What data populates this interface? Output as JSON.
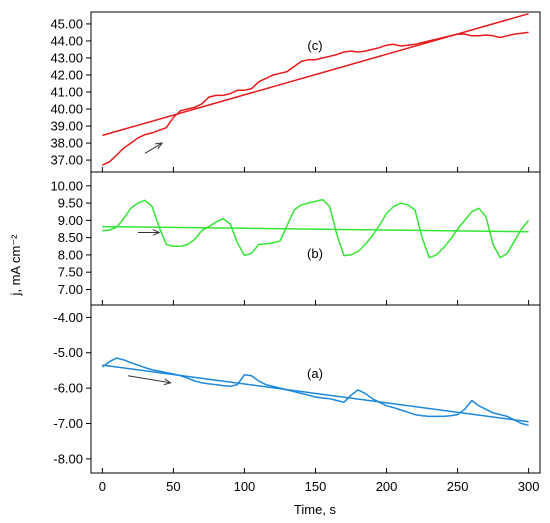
{
  "chart_data": {
    "type": "line",
    "layout": "stacked-panels",
    "shared_x": {
      "label": "Time, s",
      "range": [
        -8,
        308
      ],
      "ticks": [
        0,
        50,
        100,
        150,
        200,
        250,
        300
      ],
      "tick_labels": [
        "0",
        "50",
        "100",
        "150",
        "200",
        "250",
        "300"
      ]
    },
    "ylabel": "j, mA cm⁻²",
    "panels": [
      {
        "label": "(c)",
        "color": "#e8191a",
        "ylim": [
          36.3,
          45.7
        ],
        "yticks": [
          37,
          38,
          39,
          40,
          41,
          42,
          43,
          44,
          45
        ],
        "ytick_labels": [
          "37.00",
          "38.00",
          "39.00",
          "40.00",
          "41.00",
          "42.00",
          "43.00",
          "44.00",
          "45.00"
        ],
        "arrow": {
          "from": [
            30,
            37.4
          ],
          "to": [
            42,
            38.0
          ]
        },
        "trend": {
          "x": [
            0,
            300
          ],
          "y": [
            38.45,
            45.6
          ]
        },
        "series": [
          {
            "x": [
              0,
              5,
              10,
              15,
              20,
              25,
              30,
              35,
              40,
              45,
              50,
              55,
              60,
              65,
              70,
              75,
              80,
              85,
              90,
              95,
              100,
              105,
              110,
              115,
              120,
              125,
              130,
              135,
              140,
              145,
              150,
              155,
              160,
              165,
              170,
              175,
              180,
              185,
              190,
              195,
              200,
              205,
              210,
              215,
              220,
              225,
              230,
              235,
              240,
              245,
              250,
              255,
              260,
              265,
              270,
              275,
              280,
              285,
              290,
              295,
              300
            ],
            "y": [
              36.7,
              36.9,
              37.3,
              37.7,
              38.0,
              38.3,
              38.5,
              38.6,
              38.75,
              38.9,
              39.5,
              39.9,
              40.0,
              40.1,
              40.3,
              40.7,
              40.8,
              40.8,
              40.9,
              41.1,
              41.1,
              41.2,
              41.6,
              41.8,
              42.0,
              42.1,
              42.2,
              42.5,
              42.8,
              42.9,
              42.9,
              43.0,
              43.1,
              43.2,
              43.35,
              43.4,
              43.35,
              43.4,
              43.5,
              43.6,
              43.75,
              43.8,
              43.7,
              43.75,
              43.8,
              43.9,
              44.0,
              44.1,
              44.2,
              44.3,
              44.4,
              44.4,
              44.3,
              44.3,
              44.35,
              44.3,
              44.2,
              44.3,
              44.4,
              44.45,
              44.5
            ]
          }
        ]
      },
      {
        "label": "(b)",
        "color": "#33e633",
        "ylim": [
          6.55,
          10.4
        ],
        "yticks": [
          7,
          7.5,
          8,
          8.5,
          9,
          9.5,
          10
        ],
        "ytick_labels": [
          "7.00",
          "7.50",
          "8.00",
          "8.50",
          "9.00",
          "9.50",
          "10.00"
        ],
        "arrow": {
          "from": [
            25,
            8.65
          ],
          "to": [
            40,
            8.65
          ]
        },
        "trend": {
          "x": [
            0,
            300
          ],
          "y": [
            8.82,
            8.67
          ]
        },
        "series": [
          {
            "x": [
              0,
              5,
              10,
              15,
              20,
              25,
              30,
              35,
              40,
              45,
              50,
              55,
              60,
              65,
              70,
              75,
              80,
              85,
              90,
              95,
              100,
              105,
              110,
              115,
              120,
              125,
              130,
              135,
              140,
              145,
              150,
              155,
              160,
              165,
              170,
              175,
              180,
              185,
              190,
              195,
              200,
              205,
              210,
              215,
              220,
              225,
              230,
              235,
              240,
              245,
              250,
              255,
              260,
              265,
              270,
              275,
              280,
              285,
              290,
              295,
              300
            ],
            "y": [
              8.7,
              8.72,
              8.8,
              9.05,
              9.35,
              9.5,
              9.58,
              9.4,
              8.8,
              8.3,
              8.25,
              8.25,
              8.3,
              8.45,
              8.7,
              8.82,
              8.95,
              9.05,
              8.9,
              8.35,
              7.98,
              8.05,
              8.3,
              8.32,
              8.35,
              8.4,
              8.85,
              9.3,
              9.45,
              9.5,
              9.55,
              9.6,
              9.4,
              8.6,
              7.98,
              8.0,
              8.1,
              8.3,
              8.55,
              8.85,
              9.2,
              9.4,
              9.5,
              9.45,
              9.3,
              8.5,
              7.92,
              8.0,
              8.2,
              8.45,
              8.75,
              9.0,
              9.25,
              9.35,
              9.1,
              8.3,
              7.92,
              8.05,
              8.4,
              8.75,
              9.0
            ]
          }
        ]
      },
      {
        "label": "(a)",
        "color": "#1b88dd",
        "ylim": [
          -8.4,
          -3.65
        ],
        "yticks": [
          -8,
          -7,
          -6,
          -5,
          -4
        ],
        "ytick_labels": [
          "-8.00",
          "-7.00",
          "-6.00",
          "-5.00",
          "-4.00"
        ],
        "arrow": {
          "from": [
            18,
            -5.65
          ],
          "to": [
            48,
            -5.85
          ]
        },
        "trend": {
          "x": [
            0,
            300
          ],
          "y": [
            -5.35,
            -6.95
          ]
        },
        "series": [
          {
            "x": [
              0,
              5,
              10,
              15,
              20,
              25,
              30,
              35,
              40,
              45,
              50,
              55,
              60,
              65,
              70,
              75,
              80,
              85,
              90,
              95,
              100,
              105,
              110,
              115,
              120,
              125,
              130,
              135,
              140,
              145,
              150,
              155,
              160,
              165,
              170,
              175,
              180,
              185,
              190,
              195,
              200,
              205,
              210,
              215,
              220,
              225,
              230,
              235,
              240,
              245,
              250,
              255,
              260,
              265,
              270,
              275,
              280,
              285,
              290,
              295,
              300
            ],
            "y": [
              -5.4,
              -5.25,
              -5.15,
              -5.2,
              -5.28,
              -5.35,
              -5.42,
              -5.48,
              -5.52,
              -5.56,
              -5.6,
              -5.65,
              -5.72,
              -5.8,
              -5.85,
              -5.88,
              -5.9,
              -5.93,
              -5.95,
              -5.9,
              -5.62,
              -5.65,
              -5.8,
              -5.9,
              -5.95,
              -6.0,
              -6.05,
              -6.1,
              -6.15,
              -6.2,
              -6.25,
              -6.28,
              -6.3,
              -6.35,
              -6.4,
              -6.2,
              -6.05,
              -6.15,
              -6.3,
              -6.4,
              -6.5,
              -6.55,
              -6.62,
              -6.68,
              -6.75,
              -6.78,
              -6.8,
              -6.8,
              -6.8,
              -6.78,
              -6.75,
              -6.6,
              -6.35,
              -6.5,
              -6.6,
              -6.7,
              -6.75,
              -6.8,
              -6.9,
              -7.0,
              -7.05
            ]
          }
        ]
      }
    ]
  }
}
